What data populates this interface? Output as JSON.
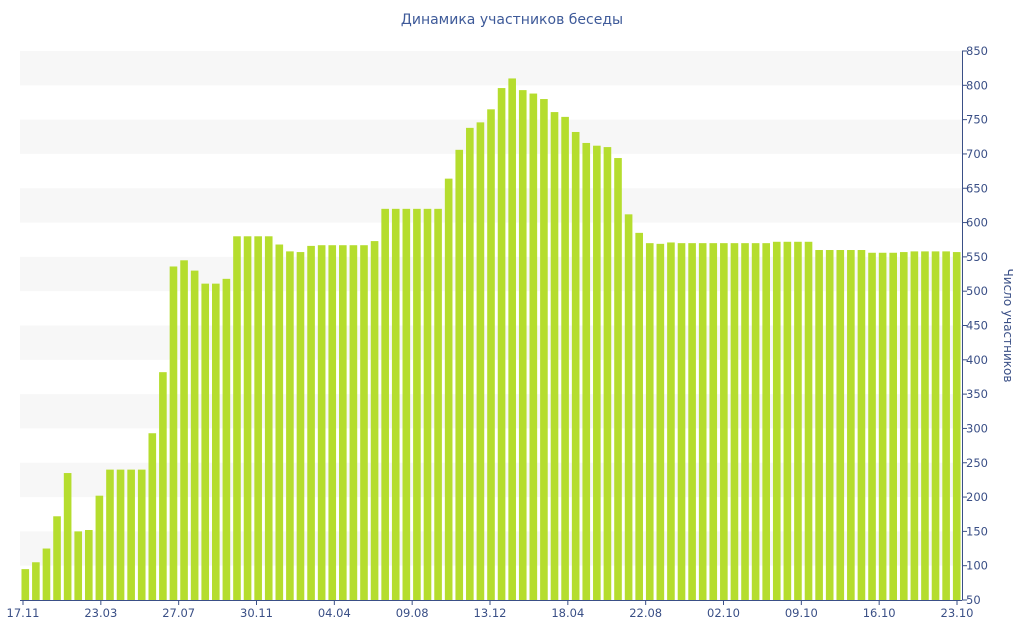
{
  "chart_data": {
    "type": "bar",
    "title": "Динамика участников беседы",
    "xlabel": "",
    "ylabel": "Число участников",
    "ylim": [
      50,
      850
    ],
    "yticks": [
      50,
      100,
      150,
      200,
      250,
      300,
      350,
      400,
      450,
      500,
      550,
      600,
      650,
      700,
      750,
      800,
      850
    ],
    "y_axis_position": "right",
    "grid": "alternating horizontal bands",
    "bar_color": "#b5dd2e",
    "band_color": "#f7f7f7",
    "text_color": "#3a4f86",
    "x_tick_labels": [
      "17.11",
      "23.03",
      "27.07",
      "30.11",
      "04.04",
      "09.08",
      "13.12",
      "18.04",
      "22.08",
      "02.10",
      "09.10",
      "16.10",
      "23.10"
    ],
    "values": [
      95,
      105,
      125,
      172,
      235,
      150,
      152,
      202,
      240,
      240,
      240,
      240,
      293,
      382,
      536,
      545,
      530,
      511,
      511,
      518,
      580,
      580,
      580,
      580,
      568,
      558,
      557,
      566,
      567,
      567,
      567,
      567,
      567,
      573,
      620,
      620,
      620,
      620,
      620,
      620,
      664,
      706,
      738,
      746,
      765,
      796,
      810,
      793,
      788,
      780,
      761,
      754,
      732,
      716,
      712,
      710,
      694,
      612,
      585,
      570,
      569,
      571,
      570,
      570,
      570,
      570,
      570,
      570,
      570,
      570,
      570,
      572,
      572,
      572,
      572,
      560,
      560,
      560,
      560,
      560,
      556,
      556,
      556,
      557,
      558,
      558,
      558,
      558,
      557
    ]
  }
}
